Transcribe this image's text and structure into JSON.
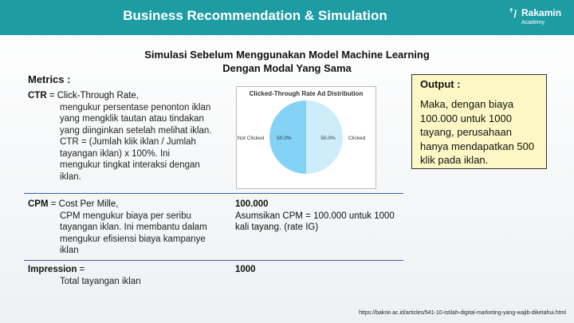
{
  "header": {
    "title": "Business Recommendation & Simulation",
    "logo": {
      "name": "Rakamin",
      "sub": "Academy"
    }
  },
  "subtitle": [
    "Simulasi Sebelum Menggunakan Model Machine Learning",
    "Dengan Modal Yang Sama"
  ],
  "metrics": {
    "label": "Metrics :",
    "rows": [
      {
        "term": "CTR",
        "first": " = Click-Through Rate,",
        "lines": [
          "mengukur persentase penonton iklan",
          "yang mengklik tautan atau tindakan",
          "yang diinginkan setelah melihat iklan.",
          "CTR = (Jumlah klik iklan / Jumlah",
          "tayangan iklan) x 100%. Ini",
          "mengukur tingkat interaksi dengan",
          "iklan."
        ]
      },
      {
        "term": "CPM",
        "first": " = Cost Per Mille,",
        "lines": [
          "CPM mengukur biaya per seribu",
          "tayangan iklan. Ini membantu dalam",
          "mengukur efisiensi biaya kampanye",
          "iklan"
        ],
        "value": "100.000",
        "note": [
          "Asumsikan CPM = 100.000 untuk 1000",
          "kali tayang. (rate IG)"
        ]
      },
      {
        "term": "Impression",
        "first": " =",
        "lines": [
          "Total tayangan iklan"
        ],
        "value": "1000"
      }
    ]
  },
  "pie": {
    "type": "pie",
    "title": "Clicked-Through Rate Ad Distribution",
    "categories": [
      "Not Clicked",
      "Clicked"
    ],
    "values": [
      50,
      50
    ],
    "value_labels": [
      "50.0%",
      "50.0%"
    ],
    "colors": [
      "#84d3f7",
      "#cdedfb"
    ]
  },
  "output": {
    "title": "Output :",
    "lines": [
      "Maka, dengan biaya",
      "100.000 untuk 1000",
      "tayang, perusahaan",
      "hanya mendapatkan 500",
      "klik pada iklan."
    ]
  },
  "footer": "https://bakrie.ac.id/articles/541-10-istilah-digital-marketing-yang-wajib-diketahui.html"
}
